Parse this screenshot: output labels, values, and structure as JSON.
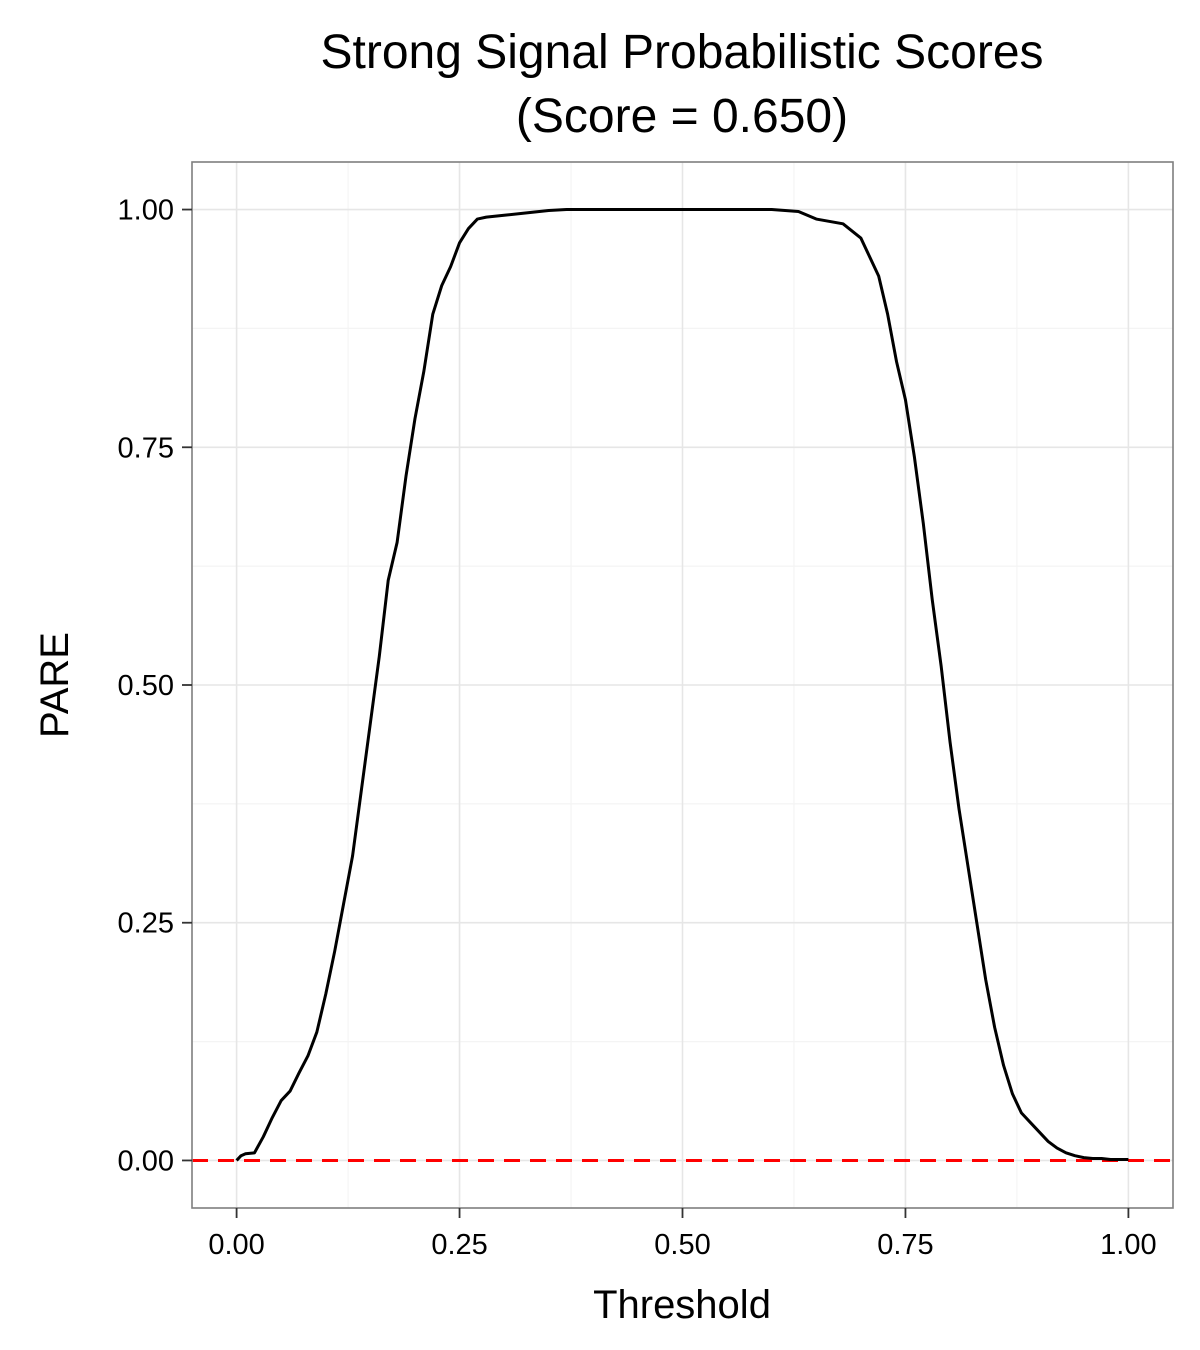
{
  "chart_data": {
    "type": "line",
    "title_line1": "Strong Signal Probabilistic Scores",
    "title_line2": "(Score = 0.650)",
    "xlabel": "Threshold",
    "ylabel": "PARE",
    "xlim": [
      -0.05,
      1.05
    ],
    "ylim": [
      -0.05,
      1.05
    ],
    "x_ticks": [
      0.0,
      0.25,
      0.5,
      0.75,
      1.0
    ],
    "x_tick_labels": [
      "0.00",
      "0.25",
      "0.50",
      "0.75",
      "1.00"
    ],
    "y_ticks": [
      0.0,
      0.25,
      0.5,
      0.75,
      1.0
    ],
    "y_tick_labels": [
      "0.00",
      "0.25",
      "0.50",
      "0.75",
      "1.00"
    ],
    "grid": true,
    "series": [
      {
        "color": "#000000",
        "x": [
          0.0,
          0.005,
          0.01,
          0.02,
          0.03,
          0.04,
          0.05,
          0.06,
          0.07,
          0.08,
          0.09,
          0.1,
          0.11,
          0.12,
          0.13,
          0.14,
          0.15,
          0.16,
          0.17,
          0.18,
          0.19,
          0.2,
          0.21,
          0.22,
          0.23,
          0.24,
          0.25,
          0.26,
          0.27,
          0.28,
          0.3,
          0.32,
          0.35,
          0.37,
          0.4,
          0.5,
          0.6,
          0.63,
          0.65,
          0.68,
          0.7,
          0.72,
          0.73,
          0.74,
          0.75,
          0.76,
          0.77,
          0.78,
          0.79,
          0.8,
          0.81,
          0.82,
          0.83,
          0.84,
          0.85,
          0.86,
          0.87,
          0.88,
          0.89,
          0.9,
          0.91,
          0.92,
          0.93,
          0.94,
          0.95,
          0.96,
          0.97,
          0.98,
          0.99,
          1.0
        ],
        "y": [
          0.0,
          0.005,
          0.007,
          0.008,
          0.025,
          0.045,
          0.063,
          0.073,
          0.092,
          0.11,
          0.135,
          0.175,
          0.22,
          0.27,
          0.32,
          0.39,
          0.46,
          0.53,
          0.61,
          0.65,
          0.72,
          0.78,
          0.83,
          0.89,
          0.92,
          0.94,
          0.965,
          0.98,
          0.99,
          0.992,
          0.994,
          0.996,
          0.999,
          1.0,
          1.0,
          1.0,
          1.0,
          0.998,
          0.99,
          0.985,
          0.97,
          0.93,
          0.89,
          0.84,
          0.8,
          0.74,
          0.67,
          0.59,
          0.52,
          0.44,
          0.37,
          0.31,
          0.25,
          0.19,
          0.14,
          0.1,
          0.07,
          0.05,
          0.04,
          0.03,
          0.02,
          0.013,
          0.008,
          0.005,
          0.003,
          0.002,
          0.002,
          0.001,
          0.001,
          0.001
        ]
      }
    ],
    "reference_lines": [
      {
        "orientation": "horizontal",
        "y": 0.0,
        "color": "#ff0000",
        "style": "dashed"
      }
    ]
  }
}
